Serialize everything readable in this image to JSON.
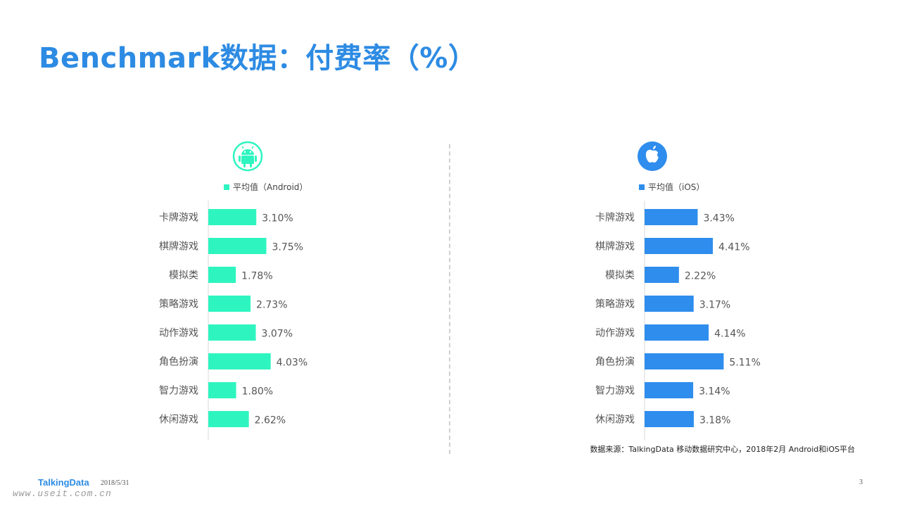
{
  "title": "Benchmark数据：付费率（%）",
  "colors": {
    "android": "#2ef5c0",
    "ios": "#2e8ded",
    "title": "#2d8be3"
  },
  "icons": {
    "android": "android-icon",
    "ios": "apple-icon"
  },
  "chart_data": [
    {
      "type": "bar",
      "orientation": "horizontal",
      "legend": "平均值（Android）",
      "categories": [
        "卡牌游戏",
        "棋牌游戏",
        "模拟类",
        "策略游戏",
        "动作游戏",
        "角色扮演",
        "智力游戏",
        "休闲游戏"
      ],
      "values": [
        3.1,
        3.75,
        1.78,
        2.73,
        3.07,
        4.03,
        1.8,
        2.62
      ],
      "value_labels": [
        "3.10%",
        "3.75%",
        "1.78%",
        "2.73%",
        "3.07%",
        "4.03%",
        "1.80%",
        "2.62%"
      ],
      "xlim": [
        0,
        8
      ],
      "color": "#2ef5c0"
    },
    {
      "type": "bar",
      "orientation": "horizontal",
      "legend": "平均值（iOS）",
      "categories": [
        "卡牌游戏",
        "棋牌游戏",
        "模拟类",
        "策略游戏",
        "动作游戏",
        "角色扮演",
        "智力游戏",
        "休闲游戏"
      ],
      "values": [
        3.43,
        4.41,
        2.22,
        3.17,
        4.14,
        5.11,
        3.14,
        3.18
      ],
      "value_labels": [
        "3.43%",
        "4.41%",
        "2.22%",
        "3.17%",
        "4.14%",
        "5.11%",
        "3.14%",
        "3.18%"
      ],
      "xlim": [
        0,
        10
      ],
      "color": "#2e8ded"
    }
  ],
  "source": "数据来源：TalkingData 移动数据研究中心，2018年2月 Android和iOS平台",
  "footer": {
    "brand": "TalkingData",
    "date": "2018/5/31",
    "page": "3",
    "watermark": "www.useit.com.cn"
  }
}
